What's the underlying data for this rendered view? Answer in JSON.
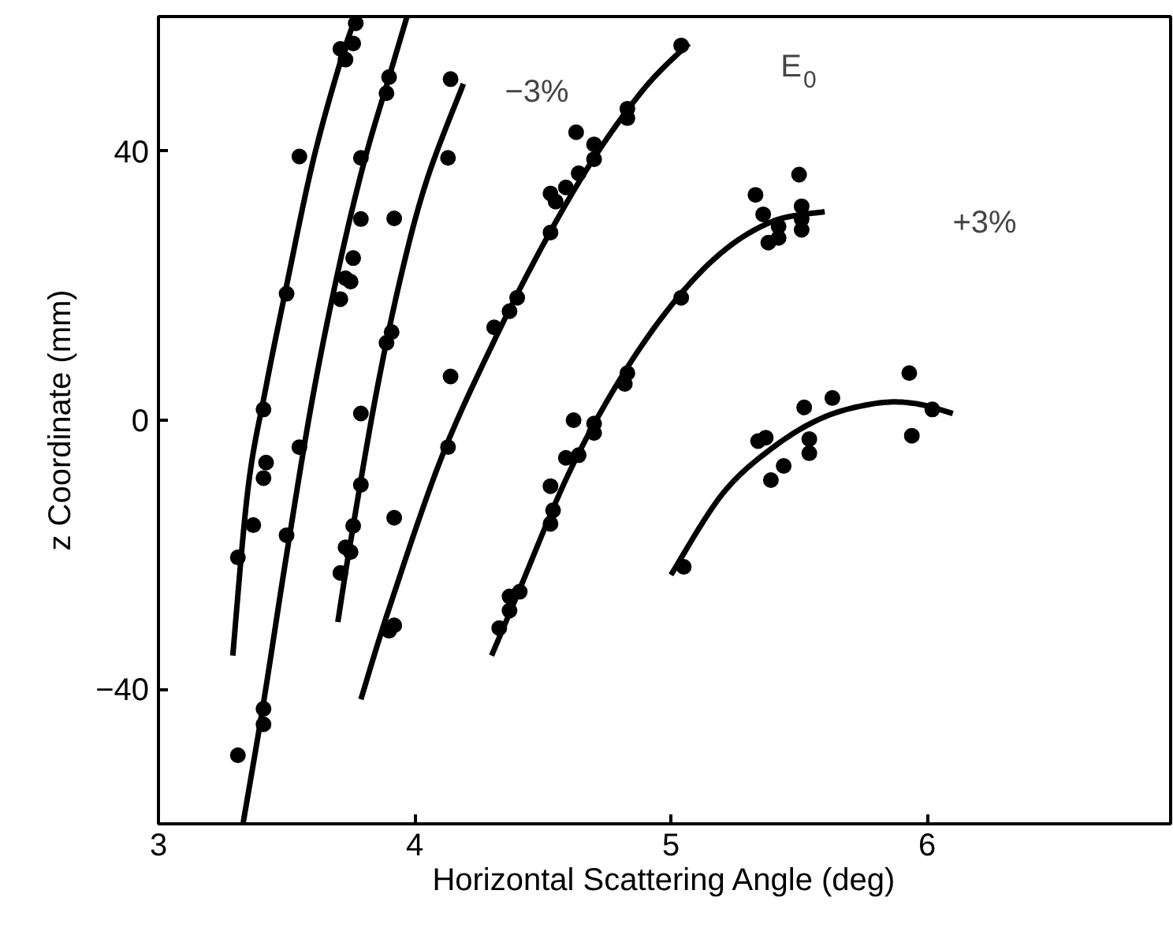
{
  "chart_data": {
    "type": "scatter",
    "xlabel": "Horizontal Scattering Angle (deg)",
    "ylabel": "z Coordinate (mm)",
    "xlim": [
      3,
      6.95
    ],
    "ylim": [
      -60,
      60
    ],
    "xticks": [
      3,
      4,
      5,
      6
    ],
    "yticks": [
      -40,
      0,
      40
    ],
    "grid": false,
    "series": [
      {
        "color": "#000000",
        "marker": "circle",
        "x": [
          3.31,
          3.37,
          3.41,
          3.42,
          3.41,
          3.5,
          3.55,
          3.71,
          3.73,
          3.76,
          3.77,
          3.31,
          3.41,
          3.41,
          3.5,
          3.55,
          3.71,
          3.73,
          3.75,
          3.76,
          3.79,
          3.79,
          3.89,
          3.9,
          3.71,
          3.73,
          3.75,
          3.76,
          3.79,
          3.79,
          3.89,
          3.91,
          3.92,
          3.92,
          4.13,
          4.14,
          3.9,
          3.92,
          4.13,
          4.14,
          4.31,
          4.37,
          4.4,
          4.53,
          4.53,
          4.55,
          4.59,
          4.63,
          4.64,
          4.7,
          4.7,
          4.83,
          4.83,
          5.04,
          4.33,
          4.37,
          4.37,
          4.41,
          4.53,
          4.54,
          4.53,
          4.59,
          4.64,
          4.62,
          4.7,
          4.7,
          4.82,
          4.83,
          5.04,
          5.33,
          5.36,
          5.38,
          5.42,
          5.42,
          5.5,
          5.51,
          5.51,
          5.51,
          5.05,
          5.34,
          5.37,
          5.39,
          5.44,
          5.52,
          5.54,
          5.54,
          5.63,
          5.93,
          5.94,
          6.02
        ],
        "values": [
          -20.4,
          -15.6,
          -8.6,
          -6.3,
          1.6,
          18.8,
          39.2,
          55.2,
          53.6,
          56,
          59,
          -49.8,
          -42.9,
          -45.2,
          -17.1,
          -4,
          18,
          21.1,
          20.6,
          24.1,
          29.9,
          39,
          48.6,
          51,
          -22.7,
          -18.9,
          -19.6,
          -15.7,
          -9.6,
          1,
          11.5,
          13.1,
          -14.5,
          30,
          39,
          50.7,
          -31.3,
          -30.5,
          -4,
          6.5,
          13.8,
          16.2,
          18.2,
          27.9,
          33.7,
          32.5,
          34.6,
          42.8,
          36.7,
          38.8,
          41,
          46.3,
          44.9,
          55.7,
          -30.9,
          -28.3,
          -26.2,
          -25.5,
          -15.4,
          -13.4,
          -9.8,
          -5.6,
          -5.2,
          0,
          -1.9,
          -0.5,
          5.4,
          7,
          18.2,
          33.5,
          30.6,
          26.4,
          27.1,
          28.8,
          36.5,
          31.8,
          29.9,
          28.3,
          -21.8,
          -3.1,
          -2.6,
          -8.9,
          -6.8,
          1.9,
          -2.8,
          -4.9,
          3.3,
          7,
          -2.3,
          1.6
        ]
      },
      {
        "type": "line",
        "color": "#000000",
        "line_style": "solid",
        "x": [
          3.29,
          3.35,
          3.42,
          3.5,
          3.6,
          3.7,
          3.77
        ],
        "values": [
          -35,
          -10,
          5,
          20,
          38,
          52,
          60
        ]
      },
      {
        "type": "line",
        "color": "#000000",
        "line_style": "solid",
        "x": [
          3.33,
          3.41,
          3.5,
          3.6,
          3.7,
          3.8,
          3.9,
          3.97
        ],
        "values": [
          -60,
          -42,
          -20,
          3,
          22,
          38,
          51,
          60
        ]
      },
      {
        "type": "line",
        "color": "#000000",
        "line_style": "solid",
        "x": [
          3.7,
          3.75,
          3.85,
          3.95,
          4.05,
          4.19
        ],
        "values": [
          -30,
          -18,
          4,
          22,
          36,
          50
        ]
      },
      {
        "type": "line",
        "color": "#000000",
        "line_style": "solid",
        "x": [
          3.79,
          3.9,
          4.1,
          4.3,
          4.5,
          4.7,
          4.9,
          5.07
        ],
        "values": [
          -41.5,
          -28,
          -6,
          11,
          26,
          39,
          49.5,
          56
        ]
      },
      {
        "type": "line",
        "color": "#000000",
        "line_style": "solid",
        "x": [
          4.3,
          4.4,
          4.6,
          4.8,
          5.0,
          5.2,
          5.4,
          5.6
        ],
        "values": [
          -35,
          -26,
          -8,
          6,
          17,
          25,
          29.6,
          31
        ]
      },
      {
        "type": "line",
        "color": "#000000",
        "line_style": "solid",
        "x": [
          5.0,
          5.2,
          5.4,
          5.6,
          5.8,
          5.95,
          6.1
        ],
        "values": [
          -23,
          -11,
          -4,
          0.5,
          2.5,
          2.5,
          1
        ]
      }
    ],
    "annotations": [
      "−3%",
      "E$_{0}$",
      "+3%"
    ]
  }
}
